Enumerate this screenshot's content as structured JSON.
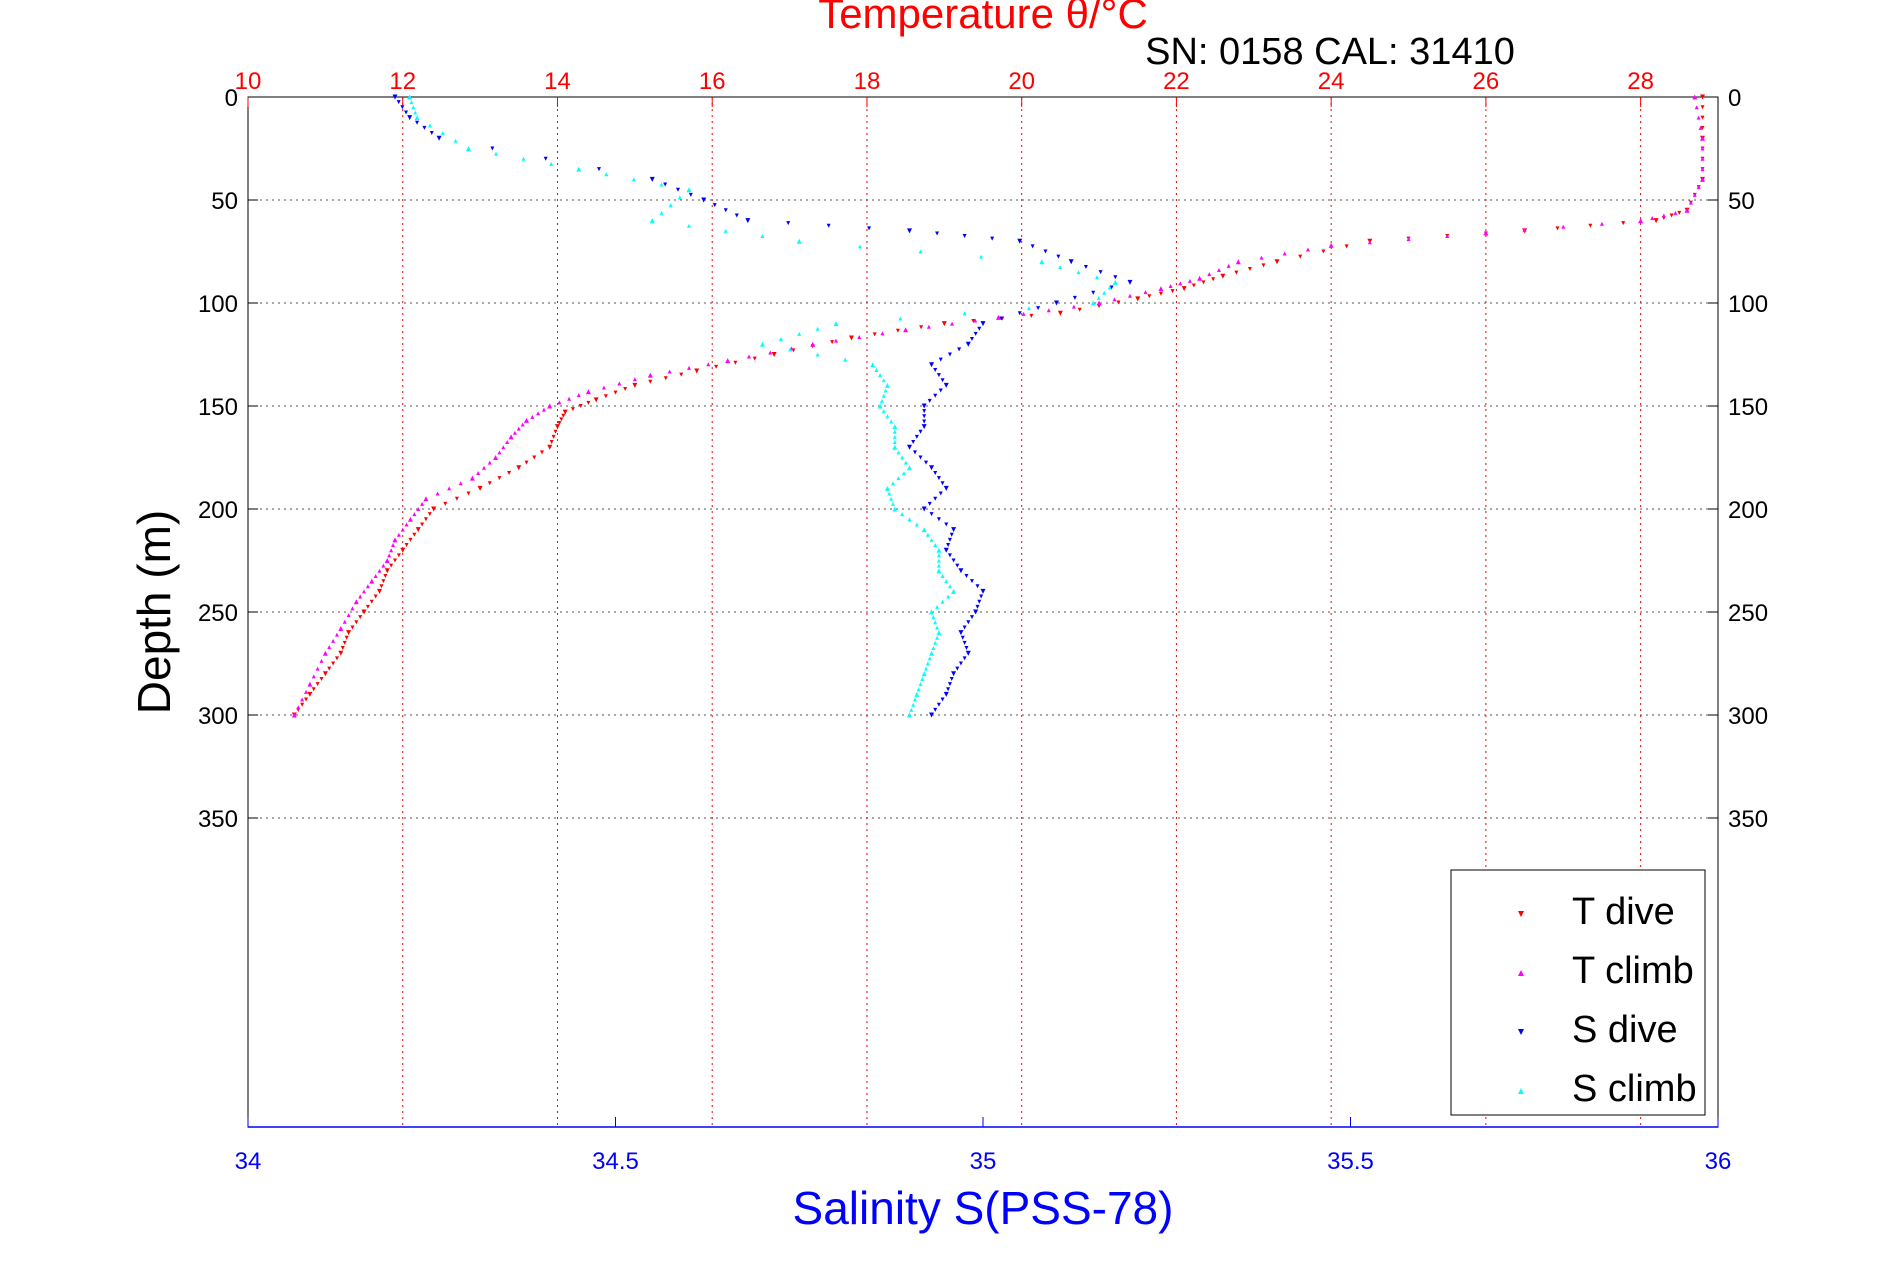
{
  "chart_data": {
    "type": "scatter",
    "title": "Temperature θ/°C",
    "subtitle": "SN: 0158  CAL: 31410",
    "top_axis": {
      "label": "Temperature θ/°C",
      "range": [
        10,
        29
      ],
      "ticks": [
        10,
        12,
        14,
        16,
        18,
        20,
        22,
        24,
        26,
        28
      ],
      "color": "#ff0000"
    },
    "bottom_axis": {
      "label": "Salinity S(PSS-78)",
      "range": [
        34,
        36
      ],
      "ticks": [
        34,
        34.5,
        35,
        35.5,
        36
      ],
      "color": "#0000ff"
    },
    "y_axis": {
      "label": "Depth (m)",
      "range": [
        0,
        500
      ],
      "inverted": true,
      "ticks": [
        0,
        50,
        100,
        150,
        200,
        250,
        300,
        350
      ]
    },
    "grid": true,
    "legend_position": "bottom-right",
    "series": [
      {
        "name": "T dive",
        "axis": "temperature",
        "color": "#ff0000",
        "marker": "triangle-down",
        "points": [
          [
            28.8,
            0
          ],
          [
            28.8,
            20
          ],
          [
            28.8,
            40
          ],
          [
            28.6,
            55
          ],
          [
            28.2,
            60
          ],
          [
            26.5,
            65
          ],
          [
            24.5,
            70
          ],
          [
            23.3,
            80
          ],
          [
            22.6,
            87
          ],
          [
            22.1,
            93
          ],
          [
            21.5,
            98
          ],
          [
            20.5,
            105
          ],
          [
            19.0,
            110
          ],
          [
            17.8,
            117
          ],
          [
            16.8,
            125
          ],
          [
            15.8,
            133
          ],
          [
            15.0,
            140
          ],
          [
            14.5,
            147
          ],
          [
            14.1,
            153
          ],
          [
            14.0,
            160
          ],
          [
            13.9,
            170
          ],
          [
            13.5,
            180
          ],
          [
            13.0,
            190
          ],
          [
            12.4,
            200
          ],
          [
            12.2,
            210
          ],
          [
            12.0,
            220
          ],
          [
            11.8,
            230
          ],
          [
            11.7,
            240
          ],
          [
            11.5,
            250
          ],
          [
            11.3,
            260
          ],
          [
            11.2,
            270
          ],
          [
            11.0,
            280
          ],
          [
            10.8,
            290
          ],
          [
            10.6,
            300
          ]
        ]
      },
      {
        "name": "T climb",
        "axis": "temperature",
        "color": "#ff00ff",
        "marker": "triangle-up",
        "points": [
          [
            28.7,
            0
          ],
          [
            28.8,
            20
          ],
          [
            28.8,
            40
          ],
          [
            28.6,
            55
          ],
          [
            28.0,
            60
          ],
          [
            26.0,
            66
          ],
          [
            24.0,
            72
          ],
          [
            22.8,
            80
          ],
          [
            22.3,
            88
          ],
          [
            21.8,
            93
          ],
          [
            21.0,
            100
          ],
          [
            19.7,
            107
          ],
          [
            18.5,
            113
          ],
          [
            17.3,
            120
          ],
          [
            16.2,
            128
          ],
          [
            15.2,
            135
          ],
          [
            14.4,
            143
          ],
          [
            13.9,
            150
          ],
          [
            13.6,
            157
          ],
          [
            13.4,
            165
          ],
          [
            13.2,
            175
          ],
          [
            12.9,
            185
          ],
          [
            12.3,
            195
          ],
          [
            12.1,
            205
          ],
          [
            11.9,
            215
          ],
          [
            11.8,
            225
          ],
          [
            11.6,
            235
          ],
          [
            11.4,
            245
          ],
          [
            11.2,
            258
          ],
          [
            11.0,
            270
          ],
          [
            10.8,
            285
          ],
          [
            10.6,
            300
          ]
        ]
      },
      {
        "name": "S dive",
        "axis": "salinity",
        "color": "#0000ff",
        "marker": "triangle-down",
        "points": [
          [
            34.2,
            0
          ],
          [
            34.22,
            10
          ],
          [
            34.26,
            20
          ],
          [
            34.55,
            40
          ],
          [
            34.62,
            50
          ],
          [
            34.68,
            60
          ],
          [
            34.9,
            65
          ],
          [
            35.05,
            70
          ],
          [
            35.12,
            80
          ],
          [
            35.2,
            90
          ],
          [
            35.1,
            100
          ],
          [
            35.0,
            110
          ],
          [
            34.98,
            120
          ],
          [
            34.93,
            130
          ],
          [
            34.95,
            140
          ],
          [
            34.92,
            150
          ],
          [
            34.92,
            160
          ],
          [
            34.9,
            170
          ],
          [
            34.93,
            180
          ],
          [
            34.95,
            190
          ],
          [
            34.92,
            200
          ],
          [
            34.96,
            210
          ],
          [
            34.95,
            220
          ],
          [
            34.97,
            230
          ],
          [
            35.0,
            240
          ],
          [
            34.99,
            250
          ],
          [
            34.97,
            260
          ],
          [
            34.98,
            270
          ],
          [
            34.96,
            280
          ],
          [
            34.95,
            290
          ],
          [
            34.93,
            300
          ]
        ]
      },
      {
        "name": "S climb",
        "axis": "salinity",
        "color": "#00ffff",
        "marker": "triangle-up",
        "points": [
          [
            34.22,
            0
          ],
          [
            34.23,
            10
          ],
          [
            34.3,
            25
          ],
          [
            34.45,
            35
          ],
          [
            34.6,
            45
          ],
          [
            34.55,
            60
          ],
          [
            34.75,
            70
          ],
          [
            35.08,
            80
          ],
          [
            35.18,
            90
          ],
          [
            35.15,
            100
          ],
          [
            34.8,
            110
          ],
          [
            34.7,
            120
          ],
          [
            34.85,
            130
          ],
          [
            34.87,
            140
          ],
          [
            34.86,
            150
          ],
          [
            34.88,
            160
          ],
          [
            34.88,
            170
          ],
          [
            34.9,
            180
          ],
          [
            34.87,
            190
          ],
          [
            34.88,
            200
          ],
          [
            34.92,
            210
          ],
          [
            34.94,
            220
          ],
          [
            34.94,
            230
          ],
          [
            34.96,
            240
          ],
          [
            34.93,
            250
          ],
          [
            34.94,
            260
          ],
          [
            34.93,
            270
          ],
          [
            34.92,
            280
          ],
          [
            34.91,
            290
          ],
          [
            34.9,
            300
          ]
        ]
      }
    ]
  }
}
